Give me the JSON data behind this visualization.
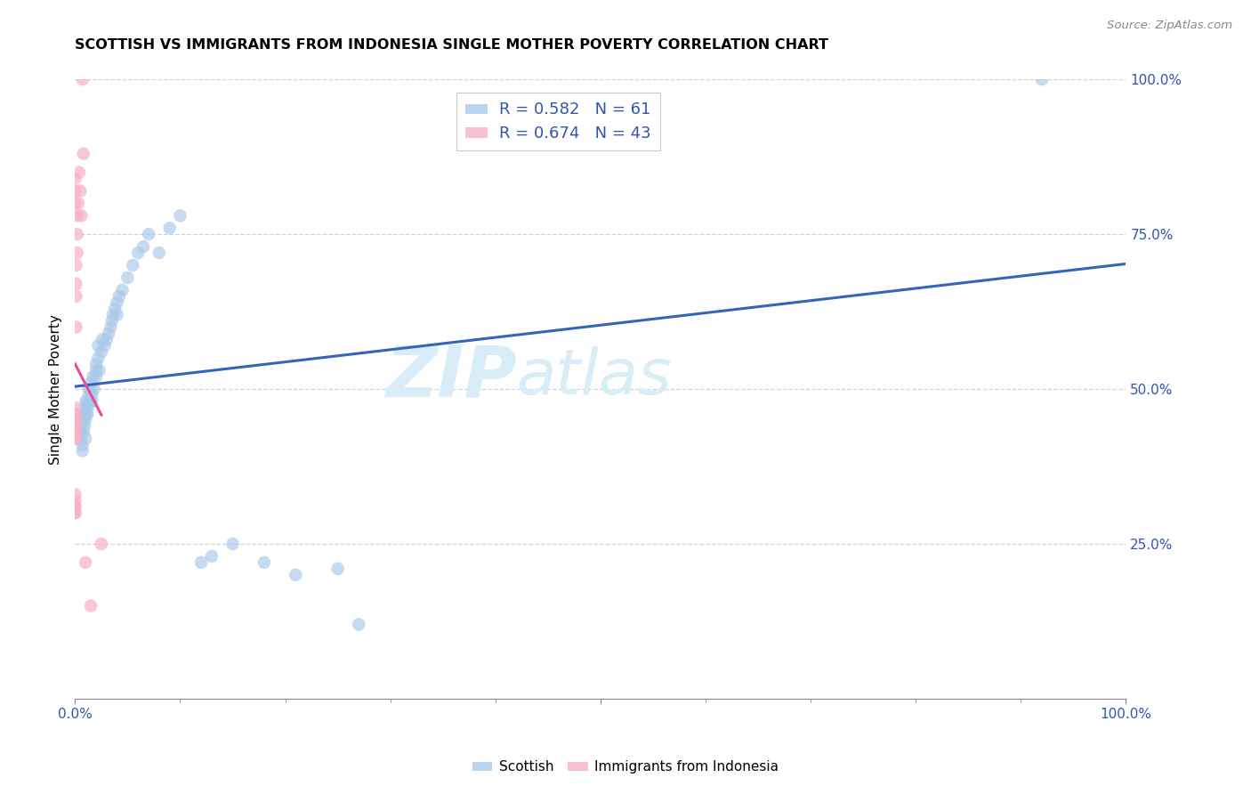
{
  "title": "SCOTTISH VS IMMIGRANTS FROM INDONESIA SINGLE MOTHER POVERTY CORRELATION CHART",
  "source": "Source: ZipAtlas.com",
  "ylabel": "Single Mother Poverty",
  "xlim": [
    0,
    1
  ],
  "ylim": [
    0,
    1
  ],
  "xticks": [
    0,
    0.5,
    1.0
  ],
  "yticks": [
    0.25,
    0.5,
    0.75,
    1.0
  ],
  "xtick_labels": [
    "0.0%",
    "",
    "100.0%"
  ],
  "ytick_labels": [
    "25.0%",
    "50.0%",
    "75.0%",
    "100.0%"
  ],
  "R_scottish": 0.582,
  "N_scottish": 61,
  "R_indonesia": 0.674,
  "N_indonesia": 43,
  "color_scottish": "#a8c8e8",
  "color_indonesia": "#f8b0c8",
  "line_color_scottish": "#3366bb",
  "line_color_indonesia": "#e0509a",
  "legend_box_color_scottish": "#b8d4ee",
  "legend_box_color_indonesia": "#f8c0d0",
  "watermark_zip": "ZIP",
  "watermark_atlas": "atlas",
  "watermark_color": "#d8edf8",
  "scottish_x": [
    0.005,
    0.005,
    0.005,
    0.007,
    0.007,
    0.008,
    0.008,
    0.008,
    0.009,
    0.01,
    0.01,
    0.01,
    0.01,
    0.01,
    0.012,
    0.012,
    0.012,
    0.013,
    0.013,
    0.015,
    0.015,
    0.015,
    0.016,
    0.016,
    0.017,
    0.018,
    0.02,
    0.02,
    0.02,
    0.022,
    0.022,
    0.023,
    0.025,
    0.026,
    0.028,
    0.03,
    0.032,
    0.034,
    0.035,
    0.036,
    0.038,
    0.04,
    0.04,
    0.042,
    0.045,
    0.05,
    0.055,
    0.06,
    0.065,
    0.07,
    0.08,
    0.09,
    0.1,
    0.12,
    0.13,
    0.15,
    0.18,
    0.21,
    0.25,
    0.27,
    0.92
  ],
  "scottish_y": [
    0.42,
    0.43,
    0.44,
    0.41,
    0.4,
    0.45,
    0.46,
    0.43,
    0.44,
    0.47,
    0.48,
    0.42,
    0.46,
    0.45,
    0.46,
    0.48,
    0.47,
    0.5,
    0.49,
    0.48,
    0.5,
    0.51,
    0.48,
    0.49,
    0.52,
    0.5,
    0.52,
    0.54,
    0.53,
    0.55,
    0.57,
    0.53,
    0.56,
    0.58,
    0.57,
    0.58,
    0.59,
    0.6,
    0.61,
    0.62,
    0.63,
    0.62,
    0.64,
    0.65,
    0.66,
    0.68,
    0.7,
    0.72,
    0.73,
    0.75,
    0.72,
    0.76,
    0.78,
    0.22,
    0.23,
    0.25,
    0.22,
    0.2,
    0.21,
    0.12,
    1.0
  ],
  "indonesia_x": [
    0.0,
    0.0,
    0.0,
    0.0,
    0.0,
    0.0,
    0.0,
    0.0,
    0.0,
    0.0,
    0.0,
    0.0,
    0.0,
    0.0,
    0.0,
    0.0,
    0.0,
    0.0,
    0.0,
    0.0,
    0.0,
    0.0,
    0.0,
    0.0,
    0.0,
    0.0,
    0.0,
    0.001,
    0.001,
    0.001,
    0.001,
    0.002,
    0.002,
    0.002,
    0.003,
    0.004,
    0.005,
    0.006,
    0.007,
    0.008,
    0.01,
    0.015,
    0.025
  ],
  "indonesia_y": [
    0.42,
    0.42,
    0.43,
    0.43,
    0.43,
    0.44,
    0.44,
    0.44,
    0.44,
    0.45,
    0.45,
    0.45,
    0.45,
    0.45,
    0.46,
    0.46,
    0.46,
    0.47,
    0.8,
    0.82,
    0.84,
    0.3,
    0.3,
    0.31,
    0.31,
    0.32,
    0.33,
    0.6,
    0.65,
    0.67,
    0.7,
    0.72,
    0.75,
    0.78,
    0.8,
    0.85,
    0.82,
    0.78,
    1.0,
    0.88,
    0.22,
    0.15,
    0.25
  ]
}
